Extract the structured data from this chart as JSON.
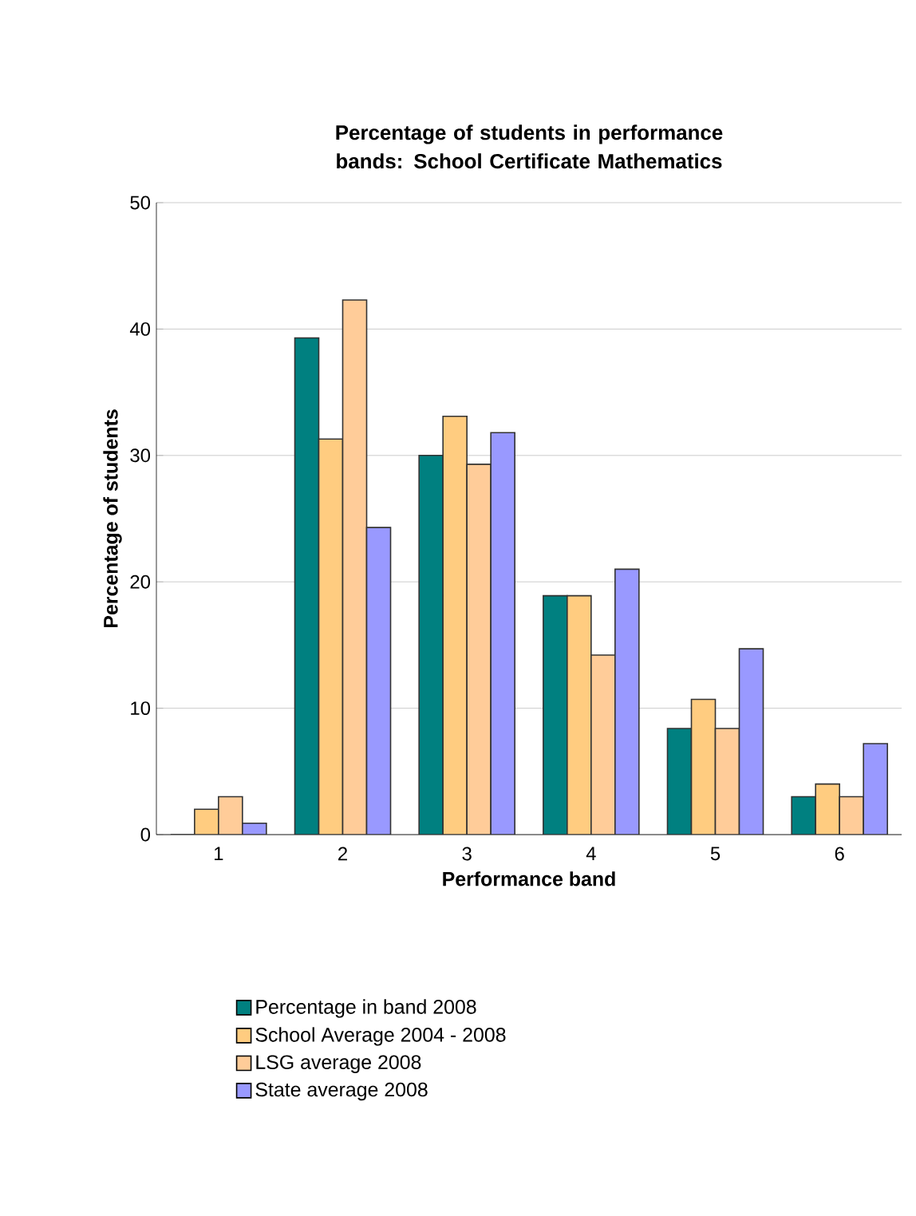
{
  "chart_data": {
    "type": "bar",
    "title": "Percentage of students in performance bands: School Certificate Mathematics",
    "xlabel": "Performance band",
    "ylabel": "Percentage of students",
    "categories": [
      "1",
      "2",
      "3",
      "4",
      "5",
      "6"
    ],
    "series": [
      {
        "name": "Percentage in band 2008",
        "color": "#008080",
        "values": [
          0,
          39.3,
          30.0,
          18.9,
          8.4,
          3.0
        ]
      },
      {
        "name": "School Average 2004 - 2008",
        "color": "#ffcc80",
        "values": [
          2.0,
          31.3,
          33.1,
          18.9,
          10.7,
          4.0
        ]
      },
      {
        "name": "LSG average 2008",
        "color": "#ffcc99",
        "values": [
          3.0,
          42.3,
          29.3,
          14.2,
          8.4,
          3.0
        ]
      },
      {
        "name": "State average 2008",
        "color": "#9999ff",
        "values": [
          0.9,
          24.3,
          31.8,
          21.0,
          14.7,
          7.2
        ]
      }
    ],
    "ylim": [
      0,
      50
    ],
    "yticks": [
      0,
      10,
      20,
      30,
      40,
      50
    ],
    "grid": "y",
    "legend": "bottom"
  }
}
